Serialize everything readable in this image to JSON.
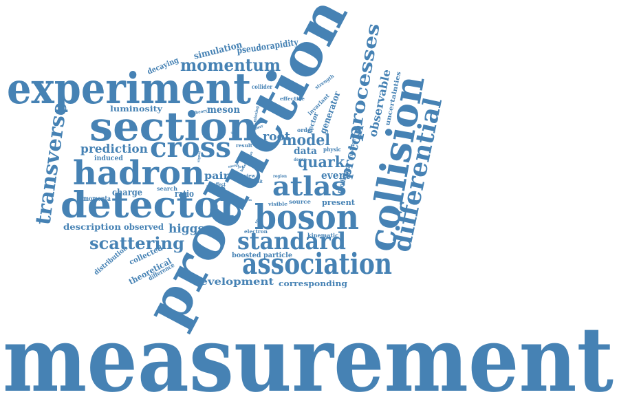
{
  "palette": {
    "word_color": "#4682b4",
    "background": "#ffffff"
  },
  "words": [
    "measurement",
    "production",
    "experiment",
    "section",
    "detector",
    "hadron",
    "cross",
    "boson",
    "collision",
    "association",
    "atlas",
    "standard",
    "differential",
    "transverse",
    "momentum",
    "processes",
    "scattering",
    "model",
    "proton",
    "quark",
    "observable",
    "prediction",
    "simulation",
    "pseudorapidity",
    "decaying",
    "luminosity",
    "meson",
    "root",
    "data",
    "event",
    "pair",
    "higgs",
    "description",
    "observed",
    "charge",
    "ratio",
    "induced",
    "momenta",
    "collected",
    "theoretical",
    "distribution",
    "difference",
    "development",
    "corresponding",
    "boosted particle",
    "kinematic",
    "electron",
    "present",
    "visible",
    "source",
    "produced",
    "generator",
    "uncertainties",
    "invariant",
    "effective",
    "strength",
    "collider",
    "vector",
    "order",
    "physic",
    "decay",
    "function",
    "mas",
    "search",
    "view",
    "result",
    "missing",
    "theory",
    "phase",
    "range",
    "factor",
    "limit",
    "region",
    "effect",
    "charm",
    "space",
    "power",
    "signal",
    "boost",
    "jet",
    "lepton",
    "energy"
  ]
}
